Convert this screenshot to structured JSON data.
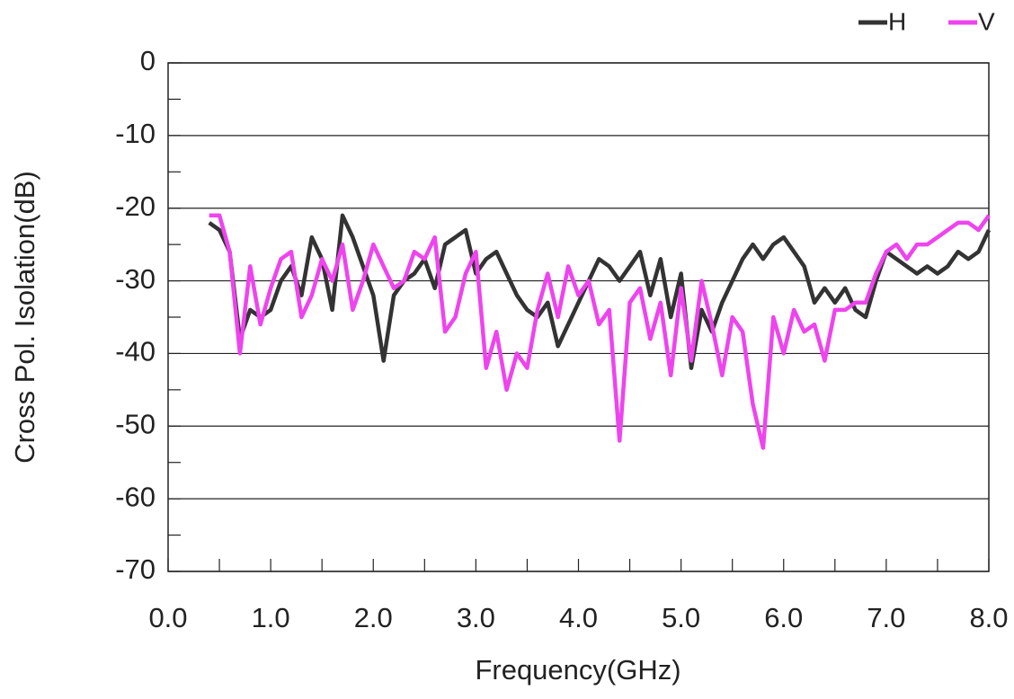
{
  "chart_data": {
    "type": "line",
    "xlabel": "Frequency(GHz)",
    "ylabel": "Cross Pol. Isolation(dB)",
    "x": [
      0.4,
      0.5,
      0.6,
      0.7,
      0.8,
      0.9,
      1.0,
      1.1,
      1.2,
      1.3,
      1.4,
      1.5,
      1.6,
      1.7,
      1.8,
      1.9,
      2.0,
      2.1,
      2.2,
      2.3,
      2.4,
      2.5,
      2.6,
      2.7,
      2.8,
      2.9,
      3.0,
      3.1,
      3.2,
      3.3,
      3.4,
      3.5,
      3.6,
      3.7,
      3.8,
      3.9,
      4.0,
      4.1,
      4.2,
      4.3,
      4.4,
      4.5,
      4.6,
      4.7,
      4.8,
      4.9,
      5.0,
      5.1,
      5.2,
      5.3,
      5.4,
      5.5,
      5.6,
      5.7,
      5.8,
      5.9,
      6.0,
      6.1,
      6.2,
      6.3,
      6.4,
      6.5,
      6.6,
      6.7,
      6.8,
      6.9,
      7.0,
      7.1,
      7.2,
      7.3,
      7.4,
      7.5,
      7.6,
      7.7,
      7.8,
      7.9,
      8.0
    ],
    "series": [
      {
        "name": "H",
        "color": "#333333",
        "values": [
          -22,
          -23,
          -26,
          -38,
          -34,
          -35,
          -34,
          -30,
          -28,
          -32,
          -24,
          -27,
          -34,
          -21,
          -24,
          -28,
          -32,
          -41,
          -32,
          -30,
          -29,
          -27,
          -31,
          -25,
          -24,
          -23,
          -29,
          -27,
          -26,
          -29,
          -32,
          -34,
          -35,
          -33,
          -39,
          -36,
          -33,
          -30,
          -27,
          -28,
          -30,
          -28,
          -26,
          -32,
          -27,
          -35,
          -29,
          -42,
          -34,
          -37,
          -33,
          -30,
          -27,
          -25,
          -27,
          -25,
          -24,
          -26,
          -28,
          -33,
          -31,
          -33,
          -31,
          -34,
          -35,
          -30,
          -26,
          -27,
          -28,
          -29,
          -28,
          -29,
          -28,
          -26,
          -27,
          -26,
          -23
        ]
      },
      {
        "name": "V",
        "color": "#ee44ee",
        "values": [
          -21,
          -21,
          -26,
          -40,
          -28,
          -36,
          -31,
          -27,
          -26,
          -35,
          -32,
          -27,
          -30,
          -25,
          -34,
          -30,
          -25,
          -28,
          -31,
          -30,
          -26,
          -27,
          -24,
          -37,
          -35,
          -29,
          -26,
          -42,
          -37,
          -45,
          -40,
          -42,
          -34,
          -29,
          -35,
          -28,
          -32,
          -30,
          -36,
          -34,
          -52,
          -33,
          -31,
          -38,
          -33,
          -43,
          -31,
          -41,
          -30,
          -36,
          -43,
          -35,
          -37,
          -47,
          -53,
          -35,
          -40,
          -34,
          -37,
          -36,
          -41,
          -34,
          -34,
          -33,
          -33,
          -29,
          -26,
          -25,
          -27,
          -25,
          -25,
          -24,
          -23,
          -22,
          -22,
          -23,
          -21
        ]
      }
    ],
    "xlim": [
      0,
      8
    ],
    "xticks": [
      {
        "value": 0,
        "label": "0.0"
      },
      {
        "value": 1,
        "label": "1.0"
      },
      {
        "value": 2,
        "label": "2.0"
      },
      {
        "value": 3,
        "label": "3.0"
      },
      {
        "value": 4,
        "label": "4.0"
      },
      {
        "value": 5,
        "label": "5.0"
      },
      {
        "value": 6,
        "label": "6.0"
      },
      {
        "value": 7,
        "label": "7.0"
      },
      {
        "value": 8,
        "label": "8.0"
      }
    ],
    "ylim": [
      -70,
      0
    ],
    "yticks": [
      0,
      -10,
      -20,
      -30,
      -40,
      -50,
      -60,
      -70
    ],
    "grid": true,
    "legend": "top-right"
  }
}
